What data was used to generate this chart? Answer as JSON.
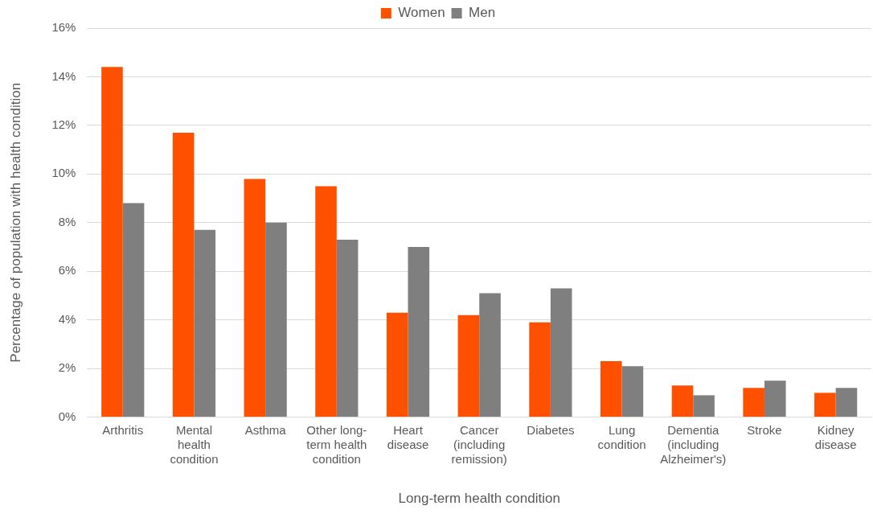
{
  "chart_data": {
    "type": "bar",
    "xlabel": "Long-term health condition",
    "ylabel": "Percentage of population with health condition",
    "categories": [
      "Arthritis",
      "Mental health condition",
      "Asthma",
      "Other long-term health condition",
      "Heart disease",
      "Cancer (including remission)",
      "Diabetes",
      "Lung condition",
      "Dementia (including Alzheimer's)",
      "Stroke",
      "Kidney disease"
    ],
    "series": [
      {
        "name": "Women",
        "color": "#ff5000",
        "values": [
          14.4,
          11.7,
          9.8,
          9.5,
          4.3,
          4.2,
          3.9,
          2.3,
          1.3,
          1.2,
          1.0
        ]
      },
      {
        "name": "Men",
        "color": "#7f7f7f",
        "values": [
          8.8,
          7.7,
          8.0,
          7.3,
          7.0,
          5.1,
          5.3,
          2.1,
          0.9,
          1.5,
          1.2
        ]
      }
    ],
    "ylim": [
      0,
      16
    ],
    "yticks": [
      {
        "value": 0,
        "label": "0%"
      },
      {
        "value": 2,
        "label": "2%"
      },
      {
        "value": 4,
        "label": "4%"
      },
      {
        "value": 6,
        "label": "6%"
      },
      {
        "value": 8,
        "label": "8%"
      },
      {
        "value": 10,
        "label": "10%"
      },
      {
        "value": 12,
        "label": "12%"
      },
      {
        "value": 14,
        "label": "14%"
      },
      {
        "value": 16,
        "label": "16%"
      }
    ],
    "grid": "y",
    "legend": "top"
  }
}
